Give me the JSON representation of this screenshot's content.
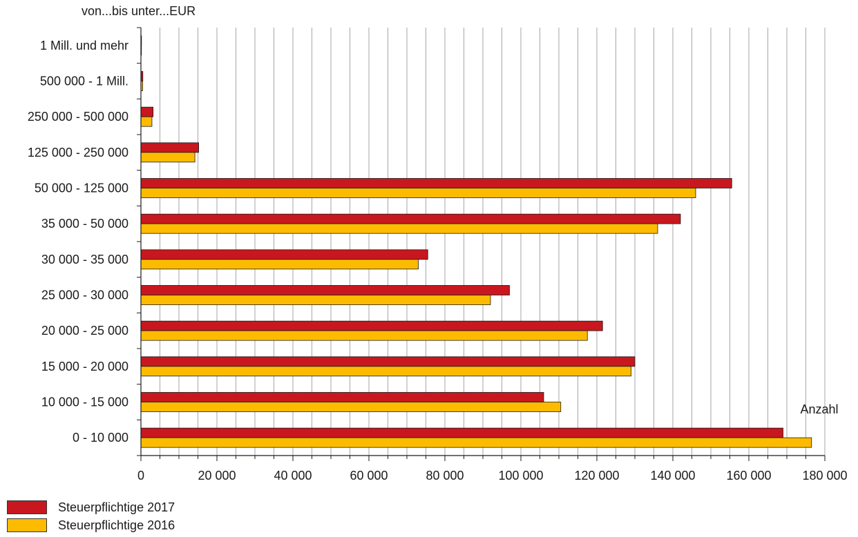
{
  "chart_data": {
    "type": "bar",
    "orientation": "horizontal",
    "ylabel": "von...bis unter...EUR",
    "xlabel": "Anzahl",
    "xlim": [
      0,
      180000
    ],
    "xticks": [
      0,
      20000,
      40000,
      60000,
      80000,
      100000,
      120000,
      140000,
      160000,
      180000
    ],
    "xtick_labels": [
      "0",
      "20 000",
      "40 000",
      "60 000",
      "80 000",
      "100 000",
      "120 000",
      "140 000",
      "160 000",
      "180 000"
    ],
    "minor_grid_step": 5000,
    "grid": true,
    "legend_position": "bottom-left",
    "categories": [
      "1 Mill. und mehr",
      "500 000 - 1 Mill.",
      "250 000 - 500 000",
      "125 000 - 250 000",
      "50 000 - 125 000",
      "35 000 - 50 000",
      "30 000 - 35 000",
      "25 000 - 30 000",
      "20 000 - 25 000",
      "15 000 - 20 000",
      "10 000 - 15 000",
      "0 - 10 000"
    ],
    "series": [
      {
        "name": "Steuerpflichtige 2017",
        "color": "#c8171e",
        "values": [
          150,
          500,
          3200,
          15200,
          155500,
          142000,
          75500,
          97000,
          121500,
          130000,
          106000,
          169000
        ]
      },
      {
        "name": "Steuerpflichtige 2016",
        "color": "#fcbb00",
        "values": [
          130,
          450,
          2900,
          14200,
          146000,
          136000,
          73000,
          92000,
          117500,
          129000,
          110500,
          176500
        ]
      }
    ]
  }
}
